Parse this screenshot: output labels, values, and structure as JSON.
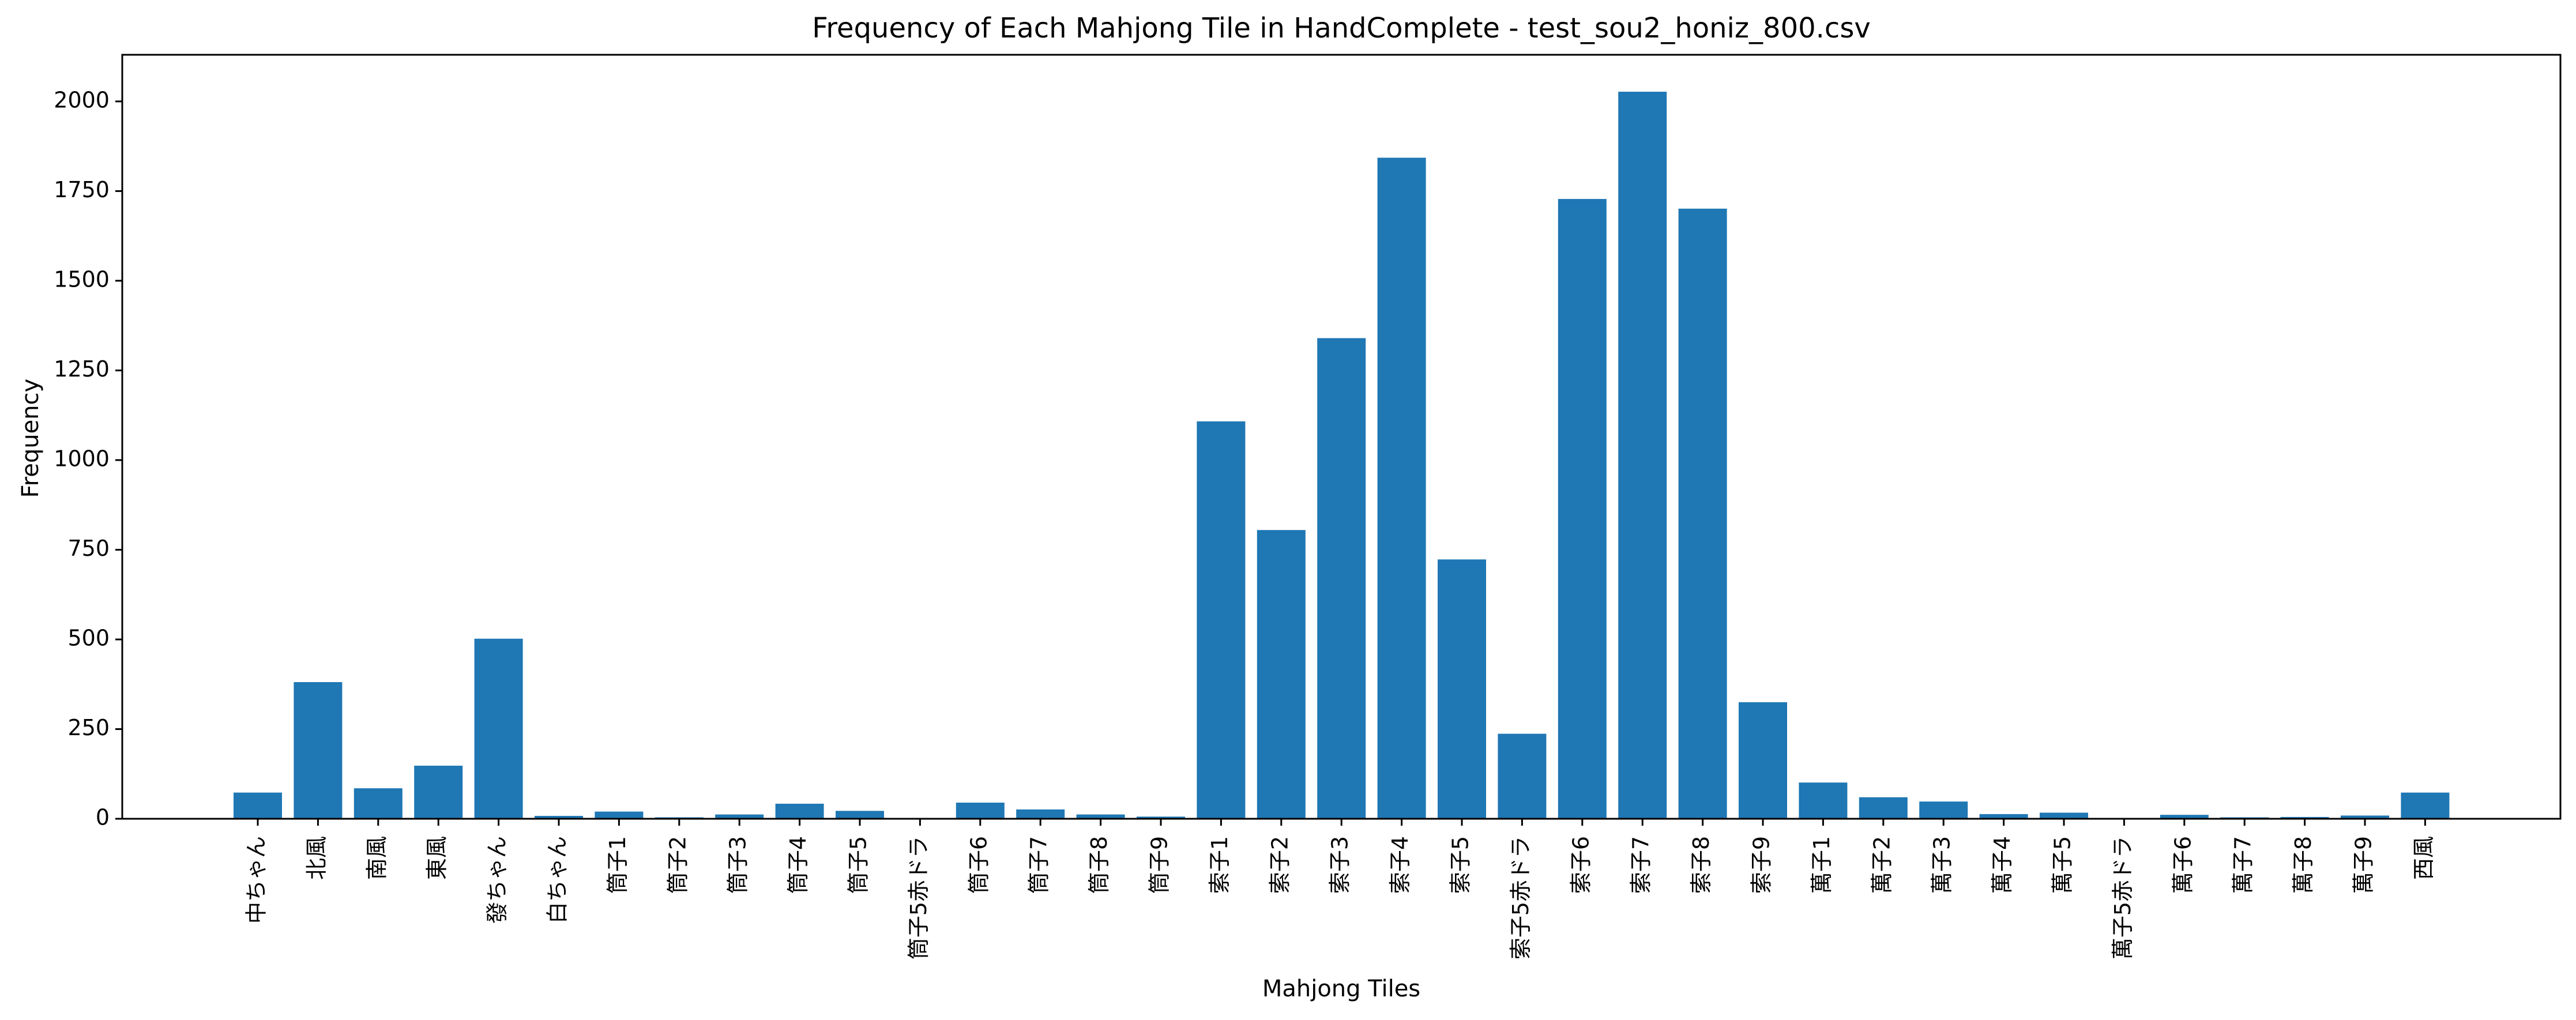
{
  "chart_data": {
    "type": "bar",
    "title": "Frequency of Each Mahjong Tile in HandComplete - test_sou2_honiz_800.csv",
    "xlabel": "Mahjong Tiles",
    "ylabel": "Frequency",
    "ylim": [
      0,
      2130
    ],
    "yticks": [
      0,
      250,
      500,
      750,
      1000,
      1250,
      1500,
      1750,
      2000
    ],
    "grid": false,
    "color": "#1f77b4",
    "categories": [
      "中ちゃん",
      "北風",
      "南風",
      "東風",
      "發ちゃん",
      "白ちゃん",
      "筒子1",
      "筒子2",
      "筒子3",
      "筒子4",
      "筒子5",
      "筒子5赤ドラ",
      "筒子6",
      "筒子7",
      "筒子8",
      "筒子9",
      "索子1",
      "索子2",
      "索子3",
      "索子4",
      "索子5",
      "索子5赤ドラ",
      "索子6",
      "索子7",
      "索子8",
      "索子9",
      "萬子1",
      "萬子2",
      "萬子3",
      "萬子4",
      "萬子5",
      "萬子5赤ドラ",
      "萬子6",
      "萬子7",
      "萬子8",
      "萬子9",
      "西風"
    ],
    "values": [
      73,
      381,
      85,
      148,
      502,
      8,
      20,
      4,
      12,
      42,
      22,
      2,
      45,
      26,
      12,
      6,
      1108,
      805,
      1340,
      1843,
      723,
      237,
      1728,
      2027,
      1701,
      325,
      101,
      60,
      48,
      13,
      17,
      1,
      11,
      4,
      5,
      9,
      73
    ]
  }
}
